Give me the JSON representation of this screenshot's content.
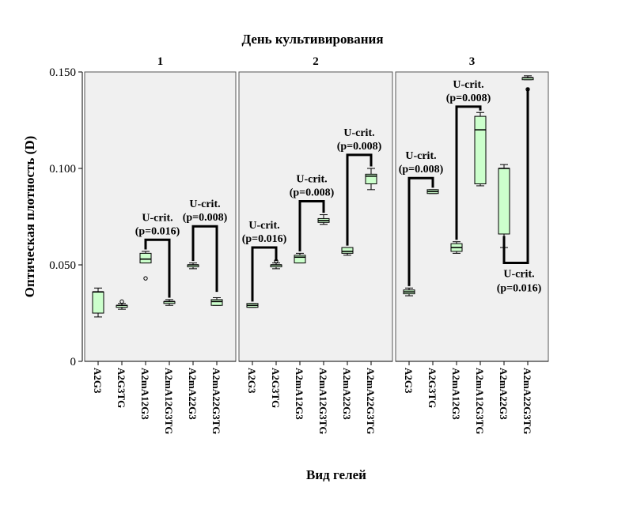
{
  "chart_data": {
    "type": "boxplot",
    "title": "День культивирования",
    "xlabel": "Вид гелей",
    "ylabel": "Оптическая плотность (D)",
    "ylim": [
      0,
      0.15
    ],
    "yticks": [
      0,
      0.05,
      0.1,
      0.15
    ],
    "ytick_labels": [
      "0",
      "0.050",
      "0.100",
      "0.150"
    ],
    "grid": false,
    "box_color": "#ccffcc",
    "panel_bg": "#f0f0f0",
    "categories": [
      "A2G3",
      "A2G3TG",
      "A2mA12G3",
      "A2mA12G3TG",
      "A2mA22G3",
      "A2mA22G3TG"
    ],
    "panels": [
      {
        "label": "1",
        "boxes": [
          {
            "category": "A2G3",
            "min": 0.023,
            "q1": 0.025,
            "median": 0.036,
            "q3": 0.036,
            "max": 0.038,
            "outliers": []
          },
          {
            "category": "A2G3TG",
            "min": 0.027,
            "q1": 0.028,
            "median": 0.029,
            "q3": 0.029,
            "max": 0.03,
            "outliers": [
              0.031
            ]
          },
          {
            "category": "A2mA12G3",
            "min": 0.051,
            "q1": 0.051,
            "median": 0.053,
            "q3": 0.056,
            "max": 0.057,
            "outliers": [
              0.043
            ]
          },
          {
            "category": "A2mA12G3TG",
            "min": 0.029,
            "q1": 0.03,
            "median": 0.031,
            "q3": 0.031,
            "max": 0.032,
            "outliers": []
          },
          {
            "category": "A2mA22G3",
            "min": 0.048,
            "q1": 0.049,
            "median": 0.05,
            "q3": 0.05,
            "max": 0.051,
            "outliers": []
          },
          {
            "category": "A2mA22G3TG",
            "min": 0.029,
            "q1": 0.029,
            "median": 0.031,
            "q3": 0.032,
            "max": 0.033,
            "outliers": []
          }
        ],
        "annotations": [
          {
            "from": "A2mA12G3",
            "to": "A2mA12G3TG",
            "y_bracket": 0.063,
            "from_y": 0.058,
            "to_y": 0.033,
            "label": "U-crit.",
            "p": "(p=0.016)"
          },
          {
            "from": "A2mA22G3",
            "to": "A2mA22G3TG",
            "y_bracket": 0.07,
            "from_y": 0.052,
            "to_y": 0.036,
            "label": "U-crit.",
            "p": "(p=0.008)"
          }
        ]
      },
      {
        "label": "2",
        "boxes": [
          {
            "category": "A2G3",
            "min": 0.028,
            "q1": 0.028,
            "median": 0.029,
            "q3": 0.03,
            "max": 0.03,
            "outliers": []
          },
          {
            "category": "A2G3TG",
            "min": 0.048,
            "q1": 0.049,
            "median": 0.05,
            "q3": 0.05,
            "max": 0.051,
            "outliers": [
              0.052
            ]
          },
          {
            "category": "A2mA12G3",
            "min": 0.051,
            "q1": 0.051,
            "median": 0.054,
            "q3": 0.055,
            "max": 0.056,
            "outliers": []
          },
          {
            "category": "A2mA12G3TG",
            "min": 0.071,
            "q1": 0.072,
            "median": 0.073,
            "q3": 0.074,
            "max": 0.076,
            "outliers": []
          },
          {
            "category": "A2mA22G3",
            "min": 0.055,
            "q1": 0.056,
            "median": 0.057,
            "q3": 0.059,
            "max": 0.059,
            "outliers": []
          },
          {
            "category": "A2mA22G3TG",
            "min": 0.089,
            "q1": 0.092,
            "median": 0.096,
            "q3": 0.097,
            "max": 0.1,
            "outliers": []
          }
        ],
        "annotations": [
          {
            "from": "A2G3",
            "to": "A2G3TG",
            "y_bracket": 0.059,
            "from_y": 0.031,
            "to_y": 0.052,
            "label": "U-crit.",
            "p": "(p=0.016)"
          },
          {
            "from": "A2mA12G3",
            "to": "A2mA12G3TG",
            "y_bracket": 0.083,
            "from_y": 0.057,
            "to_y": 0.077,
            "label": "U-crit.",
            "p": "(p=0.008)"
          },
          {
            "from": "A2mA22G3",
            "to": "A2mA22G3TG",
            "y_bracket": 0.107,
            "from_y": 0.06,
            "to_y": 0.101,
            "label": "U-crit.",
            "p": "(p=0.008)"
          }
        ]
      },
      {
        "label": "3",
        "boxes": [
          {
            "category": "A2G3",
            "min": 0.034,
            "q1": 0.035,
            "median": 0.036,
            "q3": 0.037,
            "max": 0.038,
            "outliers": []
          },
          {
            "category": "A2G3TG",
            "min": 0.087,
            "q1": 0.087,
            "median": 0.088,
            "q3": 0.089,
            "max": 0.089,
            "outliers": []
          },
          {
            "category": "A2mA12G3",
            "min": 0.056,
            "q1": 0.057,
            "median": 0.059,
            "q3": 0.061,
            "max": 0.062,
            "outliers": []
          },
          {
            "category": "A2mA12G3TG",
            "min": 0.091,
            "q1": 0.092,
            "median": 0.12,
            "q3": 0.127,
            "max": 0.129,
            "outliers": []
          },
          {
            "category": "A2mA22G3",
            "min": 0.059,
            "q1": 0.066,
            "median": 0.1,
            "q3": 0.1,
            "max": 0.102,
            "outliers": []
          },
          {
            "category": "A2mA22G3TG",
            "min": 0.146,
            "q1": 0.146,
            "median": 0.147,
            "q3": 0.147,
            "max": 0.148,
            "outliers": [
              0.141
            ]
          }
        ],
        "annotations": [
          {
            "from": "A2G3",
            "to": "A2G3TG",
            "y_bracket": 0.095,
            "from_y": 0.039,
            "to_y": 0.09,
            "label": "U-crit.",
            "p": "(p=0.008)"
          },
          {
            "from": "A2mA12G3",
            "to": "A2mA12G3TG",
            "y_bracket": 0.132,
            "from_y": 0.063,
            "to_y": 0.13,
            "label": "U-crit.",
            "p": "(p=0.008)"
          },
          {
            "from": "A2mA22G3",
            "to": "A2mA22G3TG",
            "y_bracket": 0.051,
            "from_y": 0.065,
            "to_y": 0.142,
            "label": "U-crit.",
            "p": "(p=0.016)",
            "label_below": true
          }
        ]
      }
    ]
  }
}
